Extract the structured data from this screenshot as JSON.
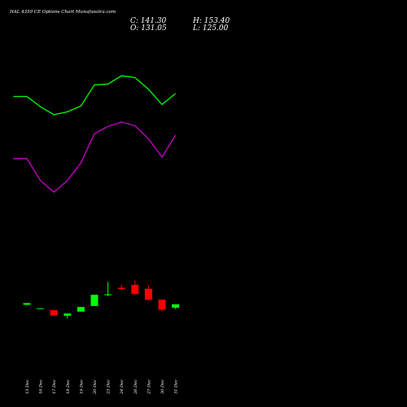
{
  "header": {
    "title": "HAL 4350 CE Options Chart Munafasutra.com",
    "close_label": "C: 141.30",
    "high_label": "H: 153.40",
    "open_label": "O: 131.05",
    "low_label": "L: 125.00"
  },
  "colors": {
    "background": "#000000",
    "upper_band": "#00ff00",
    "lower_band": "#cc00cc",
    "bull": "#00ff00",
    "bear": "#ff0000",
    "text": "#ffffff"
  },
  "chart_data": {
    "type": "candlestick",
    "x_tick_labels": [
      "13 Dec",
      "16 Dec",
      "17 Dec",
      "18 Dec",
      "19 Dec",
      "20 Dec",
      "23 Dec",
      "24 Dec",
      "26 Dec",
      "27 Dec",
      "30 Dec",
      "31 Dec"
    ],
    "candles": [
      {
        "date": "13 Dec",
        "open": 186,
        "high": 193,
        "low": 185,
        "close": 193
      },
      {
        "date": "16 Dec",
        "open": 172,
        "high": 172,
        "low": 172,
        "close": 172
      },
      {
        "date": "17 Dec",
        "open": 164,
        "high": 164,
        "low": 142,
        "close": 142
      },
      {
        "date": "18 Dec",
        "open": 141,
        "high": 150,
        "low": 130,
        "close": 150
      },
      {
        "date": "19 Dec",
        "open": 158,
        "high": 177,
        "low": 158,
        "close": 177
      },
      {
        "date": "20 Dec",
        "open": 181,
        "high": 227,
        "low": 181,
        "close": 227
      },
      {
        "date": "23 Dec",
        "open": 226,
        "high": 280,
        "low": 221,
        "close": 229
      },
      {
        "date": "24 Dec",
        "open": 256,
        "high": 269,
        "low": 245,
        "close": 251
      },
      {
        "date": "26 Dec",
        "open": 268,
        "high": 287,
        "low": 226,
        "close": 231
      },
      {
        "date": "27 Dec",
        "open": 252,
        "high": 265,
        "low": 203,
        "close": 207
      },
      {
        "date": "30 Dec",
        "open": 207,
        "high": 207,
        "low": 160,
        "close": 166
      },
      {
        "date": "31 Dec",
        "open": 174,
        "high": 188,
        "low": 168,
        "close": 188
      }
    ],
    "upper_band": [
      {
        "x": -1,
        "y": 1042
      },
      {
        "x": 0,
        "y": 1042
      },
      {
        "x": 1,
        "y": 1000
      },
      {
        "x": 2,
        "y": 967
      },
      {
        "x": 3,
        "y": 979
      },
      {
        "x": 4,
        "y": 1003
      },
      {
        "x": 5,
        "y": 1090
      },
      {
        "x": 6,
        "y": 1093
      },
      {
        "x": 7,
        "y": 1127
      },
      {
        "x": 8,
        "y": 1120
      },
      {
        "x": 9,
        "y": 1072
      },
      {
        "x": 10,
        "y": 1009
      },
      {
        "x": 11,
        "y": 1054
      }
    ],
    "lower_band": [
      {
        "x": -1,
        "y": 787
      },
      {
        "x": 0,
        "y": 787
      },
      {
        "x": 1,
        "y": 697
      },
      {
        "x": 2,
        "y": 649
      },
      {
        "x": 3,
        "y": 697
      },
      {
        "x": 4,
        "y": 769
      },
      {
        "x": 5,
        "y": 889
      },
      {
        "x": 6,
        "y": 919
      },
      {
        "x": 7,
        "y": 937
      },
      {
        "x": 8,
        "y": 922
      },
      {
        "x": 9,
        "y": 868
      },
      {
        "x": 10,
        "y": 793
      },
      {
        "x": 11,
        "y": 883
      }
    ],
    "ylim": [
      -50,
      1405
    ],
    "grid": false
  }
}
